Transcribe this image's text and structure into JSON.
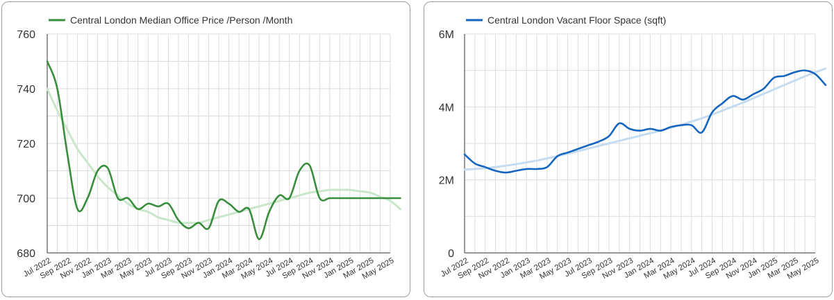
{
  "chart_data": [
    {
      "type": "line",
      "legend": {
        "position": "top-left",
        "entries": [
          "Central London Median Office Price /Person /Month"
        ]
      },
      "grid": true,
      "ylim": [
        680,
        760
      ],
      "yticks": [
        "680",
        "700",
        "720",
        "740",
        "760"
      ],
      "xticks": [
        "Jul 2022",
        "Sep 2022",
        "Nov 2022",
        "Jan 2023",
        "Mar 2023",
        "May 2023",
        "Jul 2023",
        "Sep 2023",
        "Nov 2023",
        "Jan 2024",
        "Mar 2024",
        "May 2024",
        "Jul 2024",
        "Sep 2024",
        "Nov 2024",
        "Jan 2025",
        "Mar 2025",
        "May 2025"
      ],
      "colors": {
        "series": "#388e3c",
        "trend": "#c8e6c9"
      },
      "series": [
        {
          "name": "Central London Median Office Price /Person /Month",
          "x": [
            "2022-07",
            "2022-08",
            "2022-09",
            "2022-10",
            "2022-11",
            "2022-12",
            "2023-01",
            "2023-02",
            "2023-03",
            "2023-04",
            "2023-05",
            "2023-06",
            "2023-07",
            "2023-08",
            "2023-09",
            "2023-10",
            "2023-11",
            "2023-12",
            "2024-01",
            "2024-02",
            "2024-03",
            "2024-04",
            "2024-05",
            "2024-06",
            "2024-07",
            "2024-08",
            "2024-09",
            "2024-10",
            "2024-11",
            "2024-12",
            "2025-01",
            "2025-02",
            "2025-03",
            "2025-04",
            "2025-05",
            "2025-06"
          ],
          "values": [
            750,
            740,
            716,
            696,
            700,
            710,
            711,
            700,
            700,
            696,
            698,
            697,
            698,
            692,
            689,
            691,
            689,
            699,
            698,
            695,
            696,
            685,
            695,
            701,
            700,
            710,
            712,
            700,
            700,
            700,
            700,
            700,
            700,
            700,
            700,
            700
          ]
        },
        {
          "kind": "trend",
          "x": [
            "2022-07",
            "2022-08",
            "2022-09",
            "2022-10",
            "2022-11",
            "2022-12",
            "2023-01",
            "2023-02",
            "2023-03",
            "2023-04",
            "2023-05",
            "2023-06",
            "2023-07",
            "2023-08",
            "2023-09",
            "2023-10",
            "2023-11",
            "2023-12",
            "2024-01",
            "2024-02",
            "2024-03",
            "2024-04",
            "2024-05",
            "2024-06",
            "2024-07",
            "2024-08",
            "2024-09",
            "2024-10",
            "2024-11",
            "2024-12",
            "2025-01",
            "2025-02",
            "2025-03",
            "2025-04",
            "2025-05",
            "2025-06"
          ],
          "values": [
            740,
            732,
            725,
            718,
            713,
            708,
            704,
            701,
            698,
            696,
            695,
            693,
            692,
            691,
            691,
            691,
            692,
            693,
            694,
            695,
            696,
            697,
            698,
            699,
            700,
            701,
            702,
            702.5,
            703,
            703,
            703,
            702.5,
            702,
            700.5,
            699,
            696
          ]
        }
      ]
    },
    {
      "type": "line",
      "legend": {
        "position": "top-left",
        "entries": [
          "Central London Vacant Floor Space (sqft)"
        ]
      },
      "grid": true,
      "ylim": [
        0,
        6000000
      ],
      "yticks": [
        "0",
        "2M",
        "4M",
        "6M"
      ],
      "xticks": [
        "Jul 2022",
        "Sep 2022",
        "Nov 2022",
        "Jan 2023",
        "Mar 2023",
        "May 2023",
        "Jul 2023",
        "Sep 2023",
        "Nov 2023",
        "Jan 2024",
        "Mar 2024",
        "May 2024",
        "Jul 2024",
        "Sep 2024",
        "Nov 2024",
        "Jan 2025",
        "Mar 2025",
        "May 2025"
      ],
      "colors": {
        "series": "#1565c0",
        "trend": "#c5dcf0"
      },
      "series": [
        {
          "name": "Central London Vacant Floor Space (sqft)",
          "x": [
            "2022-07",
            "2022-08",
            "2022-09",
            "2022-10",
            "2022-11",
            "2022-12",
            "2023-01",
            "2023-02",
            "2023-03",
            "2023-04",
            "2023-05",
            "2023-06",
            "2023-07",
            "2023-08",
            "2023-09",
            "2023-10",
            "2023-11",
            "2023-12",
            "2024-01",
            "2024-02",
            "2024-03",
            "2024-04",
            "2024-05",
            "2024-06",
            "2024-07",
            "2024-08",
            "2024-09",
            "2024-10",
            "2024-11",
            "2024-12",
            "2025-01",
            "2025-02",
            "2025-03",
            "2025-04",
            "2025-05",
            "2025-06"
          ],
          "values": [
            2700000,
            2450000,
            2350000,
            2250000,
            2200000,
            2250000,
            2300000,
            2300000,
            2350000,
            2650000,
            2750000,
            2850000,
            2950000,
            3050000,
            3200000,
            3550000,
            3400000,
            3350000,
            3400000,
            3350000,
            3450000,
            3500000,
            3500000,
            3300000,
            3850000,
            4100000,
            4300000,
            4200000,
            4350000,
            4500000,
            4800000,
            4850000,
            4950000,
            5000000,
            4900000,
            4600000
          ]
        },
        {
          "kind": "trend",
          "x": [
            "2022-07",
            "2022-08",
            "2022-09",
            "2022-10",
            "2022-11",
            "2022-12",
            "2023-01",
            "2023-02",
            "2023-03",
            "2023-04",
            "2023-05",
            "2023-06",
            "2023-07",
            "2023-08",
            "2023-09",
            "2023-10",
            "2023-11",
            "2023-12",
            "2024-01",
            "2024-02",
            "2024-03",
            "2024-04",
            "2024-05",
            "2024-06",
            "2024-07",
            "2024-08",
            "2024-09",
            "2024-10",
            "2024-11",
            "2024-12",
            "2025-01",
            "2025-02",
            "2025-03",
            "2025-04",
            "2025-05",
            "2025-06"
          ],
          "values": [
            2280000,
            2300000,
            2320000,
            2350000,
            2390000,
            2430000,
            2480000,
            2530000,
            2590000,
            2650000,
            2720000,
            2790000,
            2860000,
            2930000,
            3000000,
            3070000,
            3140000,
            3210000,
            3280000,
            3350000,
            3430000,
            3510000,
            3600000,
            3690000,
            3790000,
            3900000,
            4010000,
            4120000,
            4240000,
            4360000,
            4480000,
            4600000,
            4720000,
            4840000,
            4950000,
            5050000
          ]
        }
      ]
    }
  ]
}
